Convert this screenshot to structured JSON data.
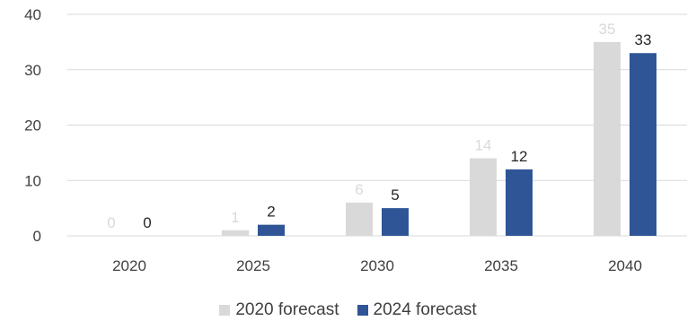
{
  "chart_data": {
    "type": "bar",
    "title": "",
    "xlabel": "",
    "ylabel": "",
    "categories": [
      "2020",
      "2025",
      "2030",
      "2035",
      "2040"
    ],
    "series": [
      {
        "name": "2020 forecast",
        "values": [
          0,
          1,
          6,
          14,
          35
        ],
        "labels": [
          "0",
          "1",
          "6",
          "14",
          "35"
        ],
        "color": "#d9d9d9",
        "label_color": "#d9d9d9"
      },
      {
        "name": "2024 forecast",
        "values": [
          0,
          2,
          5,
          12,
          33
        ],
        "labels": [
          "0",
          "2",
          "5",
          "12",
          "33"
        ],
        "color": "#2f5597",
        "label_color": "#262626"
      }
    ],
    "ylim": [
      0,
      40
    ],
    "yticks": [
      "0",
      "10",
      "20",
      "30",
      "40"
    ],
    "grid": true,
    "gridline_color": "#d9d9d9",
    "legend_position": "bottom"
  }
}
